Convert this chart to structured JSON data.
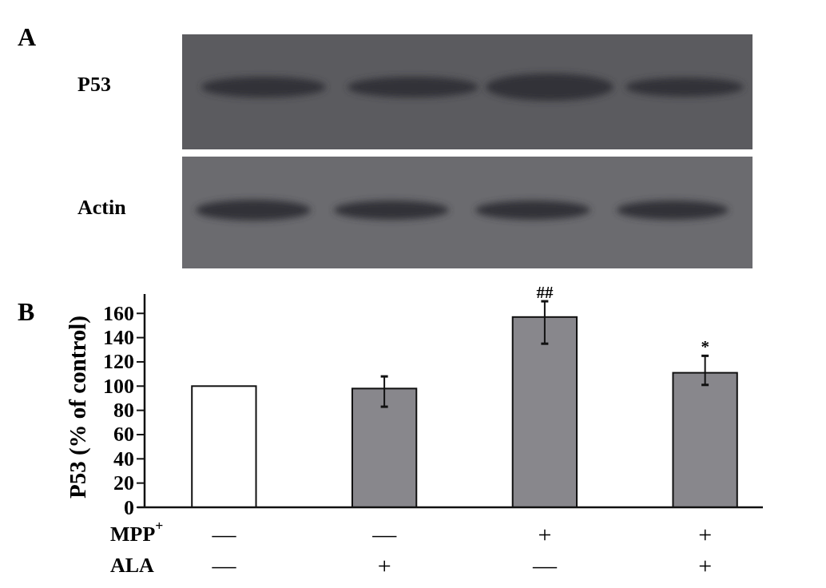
{
  "chart_data": [
    {
      "type": "other",
      "title": "A",
      "annotations": [
        "P53",
        "Actin"
      ]
    },
    {
      "type": "bar",
      "title": "B",
      "ylabel": "P53 (% of control)",
      "categories": [
        "—\n—",
        "—\n+",
        "+\n—",
        "+\n+"
      ],
      "values": [
        100,
        98,
        157,
        111
      ],
      "colors": [
        "#ffffff",
        "#88878c",
        "#88878c",
        "#88878c"
      ],
      "errors": [
        null,
        [
          83,
          108
        ],
        [
          135,
          170
        ],
        [
          101,
          125
        ]
      ],
      "ylim": [
        0,
        176
      ],
      "yticks": [
        0,
        20,
        40,
        60,
        80,
        100,
        120,
        140,
        160
      ],
      "annotations": [
        "MPP$^{+}$",
        "ALA",
        {
          "text": "##",
          "x": "+\n—",
          "y": 170
        },
        {
          "text": "*",
          "x": "+\n+",
          "y": 125
        }
      ]
    }
  ]
}
